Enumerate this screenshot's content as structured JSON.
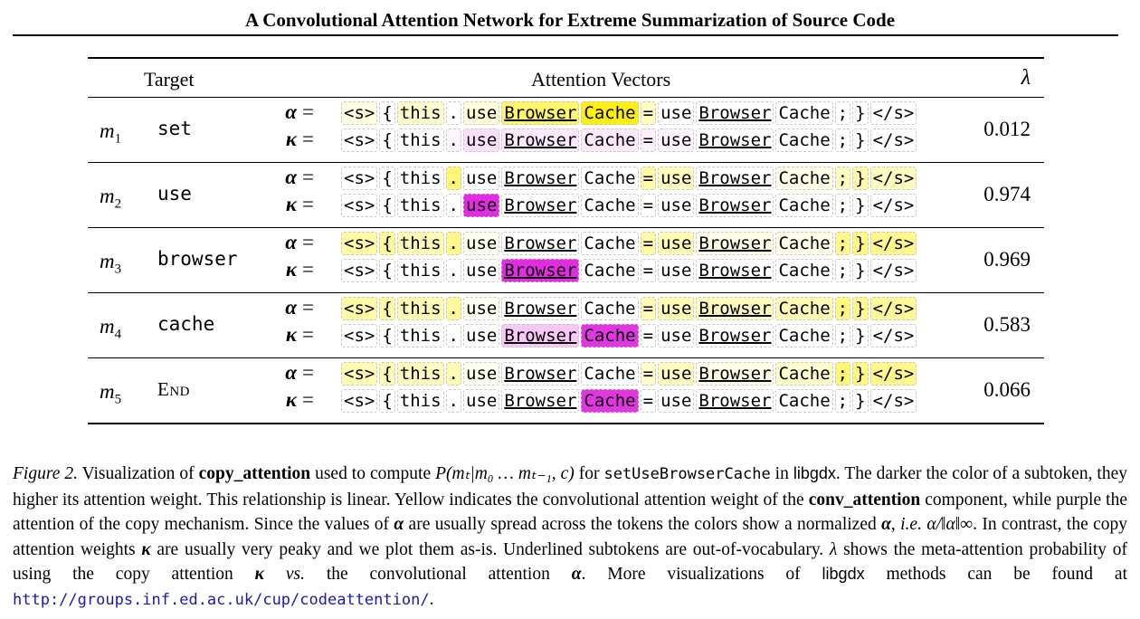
{
  "header": {
    "title": "A Convolutional Attention Network for Extreme Summarization of Source Code"
  },
  "table": {
    "col_target": "Target",
    "col_attention": "Attention Vectors",
    "col_lambda": "λ",
    "alpha_label": "α",
    "kappa_label": "κ",
    "equals": "=",
    "colors": {
      "alpha": "#ffee00",
      "kappa": "#e020e0"
    },
    "rows": [
      {
        "m_base": "m",
        "m_sub": "1",
        "target": "set",
        "smallcaps": false,
        "lambda": "0.012",
        "alpha_tokens": [
          {
            "t": "<s>",
            "w": 0.12
          },
          {
            "t": "{",
            "w": 0
          },
          {
            "t": "this",
            "w": 0.2
          },
          {
            "t": ".",
            "w": 0
          },
          {
            "t": "use",
            "w": 0.15
          },
          {
            "t": "Browser",
            "w": 0.6,
            "ul": true
          },
          {
            "t": "Cache",
            "w": 0.95
          },
          {
            "t": "=",
            "w": 0.25
          },
          {
            "t": "use",
            "w": 0
          },
          {
            "t": "Browser",
            "w": 0,
            "ul": true
          },
          {
            "t": "Cache",
            "w": 0
          },
          {
            "t": ";",
            "w": 0
          },
          {
            "t": "}",
            "w": 0
          },
          {
            "t": "</s>",
            "w": 0
          }
        ],
        "kappa_tokens": [
          {
            "t": "<s>",
            "w": 0
          },
          {
            "t": "{",
            "w": 0
          },
          {
            "t": "this",
            "w": 0
          },
          {
            "t": ".",
            "w": 0.05
          },
          {
            "t": "use",
            "w": 0.15
          },
          {
            "t": "Browser",
            "w": 0.1,
            "ul": true
          },
          {
            "t": "Cache",
            "w": 0.1
          },
          {
            "t": "=",
            "w": 0.08
          },
          {
            "t": "use",
            "w": 0.05
          },
          {
            "t": "Browser",
            "w": 0,
            "ul": true
          },
          {
            "t": "Cache",
            "w": 0
          },
          {
            "t": ";",
            "w": 0
          },
          {
            "t": "}",
            "w": 0
          },
          {
            "t": "</s>",
            "w": 0
          }
        ]
      },
      {
        "m_base": "m",
        "m_sub": "2",
        "target": "use",
        "smallcaps": false,
        "lambda": "0.974",
        "alpha_tokens": [
          {
            "t": "<s>",
            "w": 0
          },
          {
            "t": "{",
            "w": 0
          },
          {
            "t": "this",
            "w": 0
          },
          {
            "t": ".",
            "w": 0.55
          },
          {
            "t": "use",
            "w": 0
          },
          {
            "t": "Browser",
            "w": 0,
            "ul": true
          },
          {
            "t": "Cache",
            "w": 0
          },
          {
            "t": "=",
            "w": 0.35
          },
          {
            "t": "use",
            "w": 0.25
          },
          {
            "t": "Browser",
            "w": 0,
            "ul": true
          },
          {
            "t": "Cache",
            "w": 0.1
          },
          {
            "t": ";",
            "w": 0.25
          },
          {
            "t": "}",
            "w": 0.35
          },
          {
            "t": "</s>",
            "w": 0.25
          }
        ],
        "kappa_tokens": [
          {
            "t": "<s>",
            "w": 0
          },
          {
            "t": "{",
            "w": 0
          },
          {
            "t": "this",
            "w": 0
          },
          {
            "t": ".",
            "w": 0
          },
          {
            "t": "use",
            "w": 0.95
          },
          {
            "t": "Browser",
            "w": 0,
            "ul": true
          },
          {
            "t": "Cache",
            "w": 0
          },
          {
            "t": "=",
            "w": 0
          },
          {
            "t": "use",
            "w": 0
          },
          {
            "t": "Browser",
            "w": 0,
            "ul": true
          },
          {
            "t": "Cache",
            "w": 0
          },
          {
            "t": ";",
            "w": 0
          },
          {
            "t": "}",
            "w": 0
          },
          {
            "t": "</s>",
            "w": 0
          }
        ]
      },
      {
        "m_base": "m",
        "m_sub": "3",
        "target": "browser",
        "smallcaps": false,
        "lambda": "0.969",
        "alpha_tokens": [
          {
            "t": "<s>",
            "w": 0.35
          },
          {
            "t": "{",
            "w": 0.4
          },
          {
            "t": "this",
            "w": 0.3
          },
          {
            "t": ".",
            "w": 0.45
          },
          {
            "t": "use",
            "w": 0.05
          },
          {
            "t": "Browser",
            "w": 0,
            "ul": true
          },
          {
            "t": "Cache",
            "w": 0
          },
          {
            "t": "=",
            "w": 0.35
          },
          {
            "t": "use",
            "w": 0.3
          },
          {
            "t": "Browser",
            "w": 0.1,
            "ul": true
          },
          {
            "t": "Cache",
            "w": 0.1
          },
          {
            "t": ";",
            "w": 0.45
          },
          {
            "t": "}",
            "w": 0.5
          },
          {
            "t": "</s>",
            "w": 0.45
          }
        ],
        "kappa_tokens": [
          {
            "t": "<s>",
            "w": 0
          },
          {
            "t": "{",
            "w": 0
          },
          {
            "t": "this",
            "w": 0
          },
          {
            "t": ".",
            "w": 0
          },
          {
            "t": "use",
            "w": 0
          },
          {
            "t": "Browser",
            "w": 0.95,
            "ul": true
          },
          {
            "t": "Cache",
            "w": 0
          },
          {
            "t": "=",
            "w": 0
          },
          {
            "t": "use",
            "w": 0
          },
          {
            "t": "Browser",
            "w": 0,
            "ul": true
          },
          {
            "t": "Cache",
            "w": 0
          },
          {
            "t": ";",
            "w": 0
          },
          {
            "t": "}",
            "w": 0
          },
          {
            "t": "</s>",
            "w": 0
          }
        ]
      },
      {
        "m_base": "m",
        "m_sub": "4",
        "target": "cache",
        "smallcaps": false,
        "lambda": "0.583",
        "alpha_tokens": [
          {
            "t": "<s>",
            "w": 0.35
          },
          {
            "t": "{",
            "w": 0.35
          },
          {
            "t": "this",
            "w": 0.3
          },
          {
            "t": ".",
            "w": 0.4
          },
          {
            "t": "use",
            "w": 0.05
          },
          {
            "t": "Browser",
            "w": 0,
            "ul": true
          },
          {
            "t": "Cache",
            "w": 0
          },
          {
            "t": "=",
            "w": 0.3
          },
          {
            "t": "use",
            "w": 0.3
          },
          {
            "t": "Browser",
            "w": 0.25,
            "ul": true
          },
          {
            "t": "Cache",
            "w": 0.3
          },
          {
            "t": ";",
            "w": 0.5
          },
          {
            "t": "}",
            "w": 0.45
          },
          {
            "t": "</s>",
            "w": 0.4
          }
        ],
        "kappa_tokens": [
          {
            "t": "<s>",
            "w": 0
          },
          {
            "t": "{",
            "w": 0
          },
          {
            "t": "this",
            "w": 0
          },
          {
            "t": ".",
            "w": 0
          },
          {
            "t": "use",
            "w": 0
          },
          {
            "t": "Browser",
            "w": 0.25,
            "ul": true
          },
          {
            "t": "Cache",
            "w": 0.9
          },
          {
            "t": "=",
            "w": 0
          },
          {
            "t": "use",
            "w": 0
          },
          {
            "t": "Browser",
            "w": 0,
            "ul": true
          },
          {
            "t": "Cache",
            "w": 0
          },
          {
            "t": ";",
            "w": 0
          },
          {
            "t": "}",
            "w": 0
          },
          {
            "t": "</s>",
            "w": 0
          }
        ]
      },
      {
        "m_base": "m",
        "m_sub": "5",
        "target": "End",
        "smallcaps": true,
        "lambda": "0.066",
        "alpha_tokens": [
          {
            "t": "<s>",
            "w": 0.3
          },
          {
            "t": "{",
            "w": 0.3
          },
          {
            "t": "this",
            "w": 0.25
          },
          {
            "t": ".",
            "w": 0.3
          },
          {
            "t": "use",
            "w": 0.05
          },
          {
            "t": "Browser",
            "w": 0,
            "ul": true
          },
          {
            "t": "Cache",
            "w": 0
          },
          {
            "t": "=",
            "w": 0.2
          },
          {
            "t": "use",
            "w": 0.25
          },
          {
            "t": "Browser",
            "w": 0.1,
            "ul": true
          },
          {
            "t": "Cache",
            "w": 0.2
          },
          {
            "t": ";",
            "w": 0.55
          },
          {
            "t": "}",
            "w": 0.5
          },
          {
            "t": "</s>",
            "w": 0.45
          }
        ],
        "kappa_tokens": [
          {
            "t": "<s>",
            "w": 0
          },
          {
            "t": "{",
            "w": 0
          },
          {
            "t": "this",
            "w": 0
          },
          {
            "t": ".",
            "w": 0
          },
          {
            "t": "use",
            "w": 0
          },
          {
            "t": "Browser",
            "w": 0,
            "ul": true
          },
          {
            "t": "Cache",
            "w": 0.9
          },
          {
            "t": "=",
            "w": 0
          },
          {
            "t": "use",
            "w": 0
          },
          {
            "t": "Browser",
            "w": 0,
            "ul": true
          },
          {
            "t": "Cache",
            "w": 0
          },
          {
            "t": ";",
            "w": 0
          },
          {
            "t": "}",
            "w": 0
          },
          {
            "t": "</s>",
            "w": 0
          }
        ]
      }
    ]
  },
  "caption": {
    "fig": "Figure 2.",
    "p1": " Visualization of ",
    "b1": "copy_attention",
    "p2": " used to compute ",
    "formula": "P(mₜ|m₀ … mₜ₋₁, c)",
    "p3": " for ",
    "code1": "setUseBrowserCache",
    "p4": " in ",
    "lib1": "libgdx",
    "p5": ". The darker the color of a subtoken, they higher its attention weight. This relationship is linear. Yellow indicates the convolutional attention weight of the ",
    "b2": "conv_attention",
    "p6": " component, while purple the attention of the copy mechanism. Since the values of ",
    "alpha1": "α",
    "p7": " are usually spread across the tokens the colors show a normalized ",
    "alpha2": "α",
    "p8": ", ",
    "ie": "i.e.",
    "norm": " α/‖α‖∞",
    "p9": ". In contrast, the copy attention weights ",
    "kappa1": "κ",
    "p10": " are usually very peaky and we plot them as-is. Underlined subtokens are out-of-vocabulary. ",
    "lambda1": "λ",
    "p11": " shows the meta-attention probability of using the copy attention ",
    "kappa2": "κ",
    "vs": " vs.",
    "p12": " the convolutional attention ",
    "alpha3": "α",
    "p13": ". More visualizations of ",
    "lib2": "libgdx",
    "p14": " methods can be found at ",
    "url": "http://groups.inf.ed.ac.uk/cup/codeattention/",
    "p15": "."
  }
}
